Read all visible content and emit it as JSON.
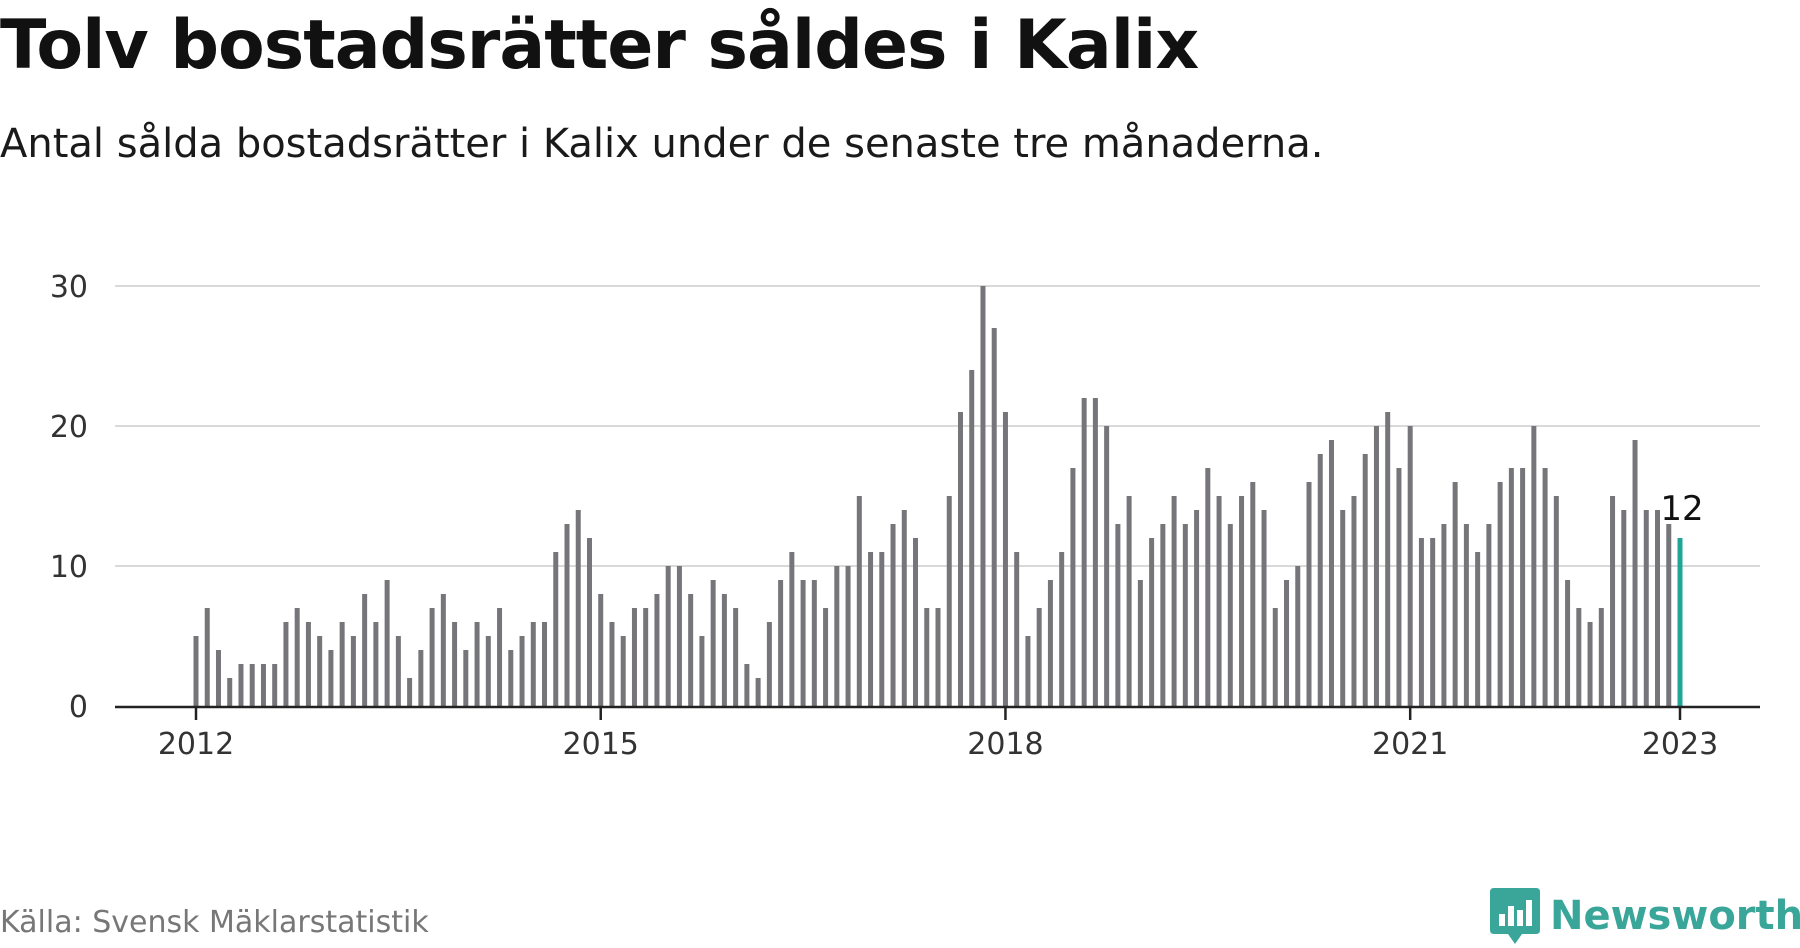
{
  "header": {
    "title": "Tolv bostadsrätter såldes i Kalix",
    "subtitle": "Antal sålda bostadsrätter i Kalix under de senaste tre månaderna."
  },
  "footer": {
    "source": "Källa: Svensk Mäklarstatistik",
    "brand": "Newsworthy",
    "brand_icon": "bar-chart-speech-bubble-icon"
  },
  "colors": {
    "bar": "#76757a",
    "highlight": "#1fa698",
    "grid": "#d9d9d9",
    "axis": "#222222",
    "brand": "#3aa69a"
  },
  "chart_data": {
    "type": "bar",
    "title": "Tolv bostadsrätter såldes i Kalix",
    "subtitle": "Antal sålda bostadsrätter i Kalix under de senaste tre månaderna.",
    "xlabel": "",
    "ylabel": "",
    "ylim": [
      0,
      30
    ],
    "yticks": [
      0,
      10,
      20,
      30
    ],
    "grid": true,
    "x_start": "2012-01",
    "x_end": "2023-01",
    "xticks": [
      {
        "label": "2012",
        "index": 0
      },
      {
        "label": "2015",
        "index": 36
      },
      {
        "label": "2018",
        "index": 72
      },
      {
        "label": "2021",
        "index": 108
      },
      {
        "label": "2023",
        "index": 132
      }
    ],
    "values": [
      5,
      7,
      4,
      2,
      3,
      3,
      3,
      3,
      6,
      7,
      6,
      5,
      4,
      6,
      5,
      8,
      6,
      9,
      5,
      2,
      4,
      7,
      8,
      6,
      4,
      6,
      5,
      7,
      4,
      5,
      6,
      6,
      11,
      13,
      14,
      12,
      8,
      6,
      5,
      7,
      7,
      8,
      10,
      10,
      8,
      5,
      9,
      8,
      7,
      3,
      2,
      6,
      9,
      11,
      9,
      9,
      7,
      10,
      10,
      15,
      11,
      11,
      13,
      14,
      12,
      7,
      7,
      15,
      21,
      24,
      30,
      27,
      21,
      11,
      5,
      7,
      9,
      11,
      17,
      22,
      22,
      20,
      13,
      15,
      9,
      12,
      13,
      15,
      13,
      14,
      17,
      15,
      13,
      15,
      16,
      14,
      7,
      9,
      10,
      16,
      18,
      19,
      14,
      15,
      18,
      20,
      21,
      17,
      20,
      12,
      12,
      13,
      16,
      13,
      11,
      13,
      16,
      17,
      17,
      20,
      17,
      15,
      9,
      7,
      6,
      7,
      15,
      14,
      19,
      14,
      14,
      13,
      12
    ],
    "highlight_index": 132,
    "highlight_label": "12"
  }
}
